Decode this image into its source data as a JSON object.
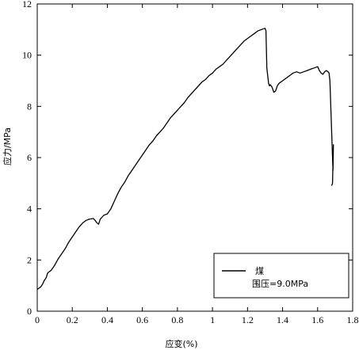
{
  "chart_data": {
    "type": "line",
    "xlabel": "应变(%)",
    "ylabel": "应力/MPa",
    "xlim": [
      0,
      1.8
    ],
    "ylim": [
      0,
      12
    ],
    "xticks": [
      0,
      0.2,
      0.4,
      0.6,
      0.8,
      1,
      1.2,
      1.4,
      1.6,
      1.8
    ],
    "xtick_labels": [
      "0",
      "0.2",
      "0.4",
      "0.6",
      "0.8",
      "1",
      "1.2",
      "1.4",
      "1.6",
      "1.8"
    ],
    "yticks": [
      0,
      2,
      4,
      6,
      8,
      10,
      12
    ],
    "ytick_labels": [
      "0",
      "2",
      "4",
      "6",
      "8",
      "10",
      "12"
    ],
    "grid": false,
    "legend": {
      "position": "bottom-right",
      "label": "煤",
      "annotation": "围压=9.0MPa"
    },
    "series": [
      {
        "name": "煤",
        "color": "#000000",
        "points": [
          [
            0.0,
            0.85
          ],
          [
            0.01,
            0.9
          ],
          [
            0.02,
            0.95
          ],
          [
            0.03,
            1.05
          ],
          [
            0.04,
            1.2
          ],
          [
            0.05,
            1.3
          ],
          [
            0.06,
            1.5
          ],
          [
            0.07,
            1.55
          ],
          [
            0.08,
            1.6
          ],
          [
            0.1,
            1.8
          ],
          [
            0.12,
            2.05
          ],
          [
            0.14,
            2.25
          ],
          [
            0.16,
            2.45
          ],
          [
            0.18,
            2.7
          ],
          [
            0.2,
            2.9
          ],
          [
            0.22,
            3.1
          ],
          [
            0.24,
            3.3
          ],
          [
            0.26,
            3.45
          ],
          [
            0.28,
            3.55
          ],
          [
            0.3,
            3.6
          ],
          [
            0.32,
            3.62
          ],
          [
            0.33,
            3.55
          ],
          [
            0.34,
            3.45
          ],
          [
            0.35,
            3.4
          ],
          [
            0.36,
            3.6
          ],
          [
            0.38,
            3.75
          ],
          [
            0.4,
            3.8
          ],
          [
            0.42,
            4.0
          ],
          [
            0.44,
            4.3
          ],
          [
            0.46,
            4.6
          ],
          [
            0.48,
            4.85
          ],
          [
            0.5,
            5.05
          ],
          [
            0.52,
            5.3
          ],
          [
            0.54,
            5.5
          ],
          [
            0.56,
            5.7
          ],
          [
            0.58,
            5.9
          ],
          [
            0.6,
            6.1
          ],
          [
            0.62,
            6.3
          ],
          [
            0.64,
            6.5
          ],
          [
            0.66,
            6.65
          ],
          [
            0.68,
            6.85
          ],
          [
            0.7,
            7.0
          ],
          [
            0.72,
            7.15
          ],
          [
            0.74,
            7.35
          ],
          [
            0.76,
            7.55
          ],
          [
            0.78,
            7.7
          ],
          [
            0.8,
            7.85
          ],
          [
            0.82,
            8.0
          ],
          [
            0.84,
            8.15
          ],
          [
            0.86,
            8.35
          ],
          [
            0.88,
            8.5
          ],
          [
            0.9,
            8.65
          ],
          [
            0.92,
            8.8
          ],
          [
            0.94,
            8.95
          ],
          [
            0.96,
            9.05
          ],
          [
            0.98,
            9.2
          ],
          [
            1.0,
            9.3
          ],
          [
            1.02,
            9.45
          ],
          [
            1.04,
            9.55
          ],
          [
            1.06,
            9.65
          ],
          [
            1.08,
            9.8
          ],
          [
            1.1,
            9.95
          ],
          [
            1.12,
            10.1
          ],
          [
            1.14,
            10.25
          ],
          [
            1.16,
            10.4
          ],
          [
            1.18,
            10.55
          ],
          [
            1.2,
            10.65
          ],
          [
            1.22,
            10.75
          ],
          [
            1.24,
            10.85
          ],
          [
            1.26,
            10.95
          ],
          [
            1.28,
            11.0
          ],
          [
            1.3,
            11.05
          ],
          [
            1.305,
            10.95
          ],
          [
            1.31,
            9.5
          ],
          [
            1.315,
            9.2
          ],
          [
            1.32,
            8.9
          ],
          [
            1.325,
            8.8
          ],
          [
            1.33,
            8.85
          ],
          [
            1.34,
            8.75
          ],
          [
            1.35,
            8.55
          ],
          [
            1.36,
            8.6
          ],
          [
            1.37,
            8.8
          ],
          [
            1.38,
            8.9
          ],
          [
            1.4,
            9.0
          ],
          [
            1.42,
            9.1
          ],
          [
            1.44,
            9.2
          ],
          [
            1.46,
            9.3
          ],
          [
            1.48,
            9.35
          ],
          [
            1.5,
            9.3
          ],
          [
            1.52,
            9.35
          ],
          [
            1.54,
            9.4
          ],
          [
            1.56,
            9.45
          ],
          [
            1.58,
            9.5
          ],
          [
            1.6,
            9.55
          ],
          [
            1.61,
            9.4
          ],
          [
            1.62,
            9.3
          ],
          [
            1.63,
            9.25
          ],
          [
            1.64,
            9.35
          ],
          [
            1.65,
            9.4
          ],
          [
            1.66,
            9.35
          ],
          [
            1.665,
            9.3
          ],
          [
            1.67,
            9.0
          ],
          [
            1.675,
            8.0
          ],
          [
            1.68,
            7.0
          ],
          [
            1.685,
            6.0
          ],
          [
            1.688,
            5.5
          ],
          [
            1.69,
            6.5
          ],
          [
            1.685,
            5.0
          ],
          [
            1.68,
            4.9
          ]
        ]
      }
    ]
  }
}
